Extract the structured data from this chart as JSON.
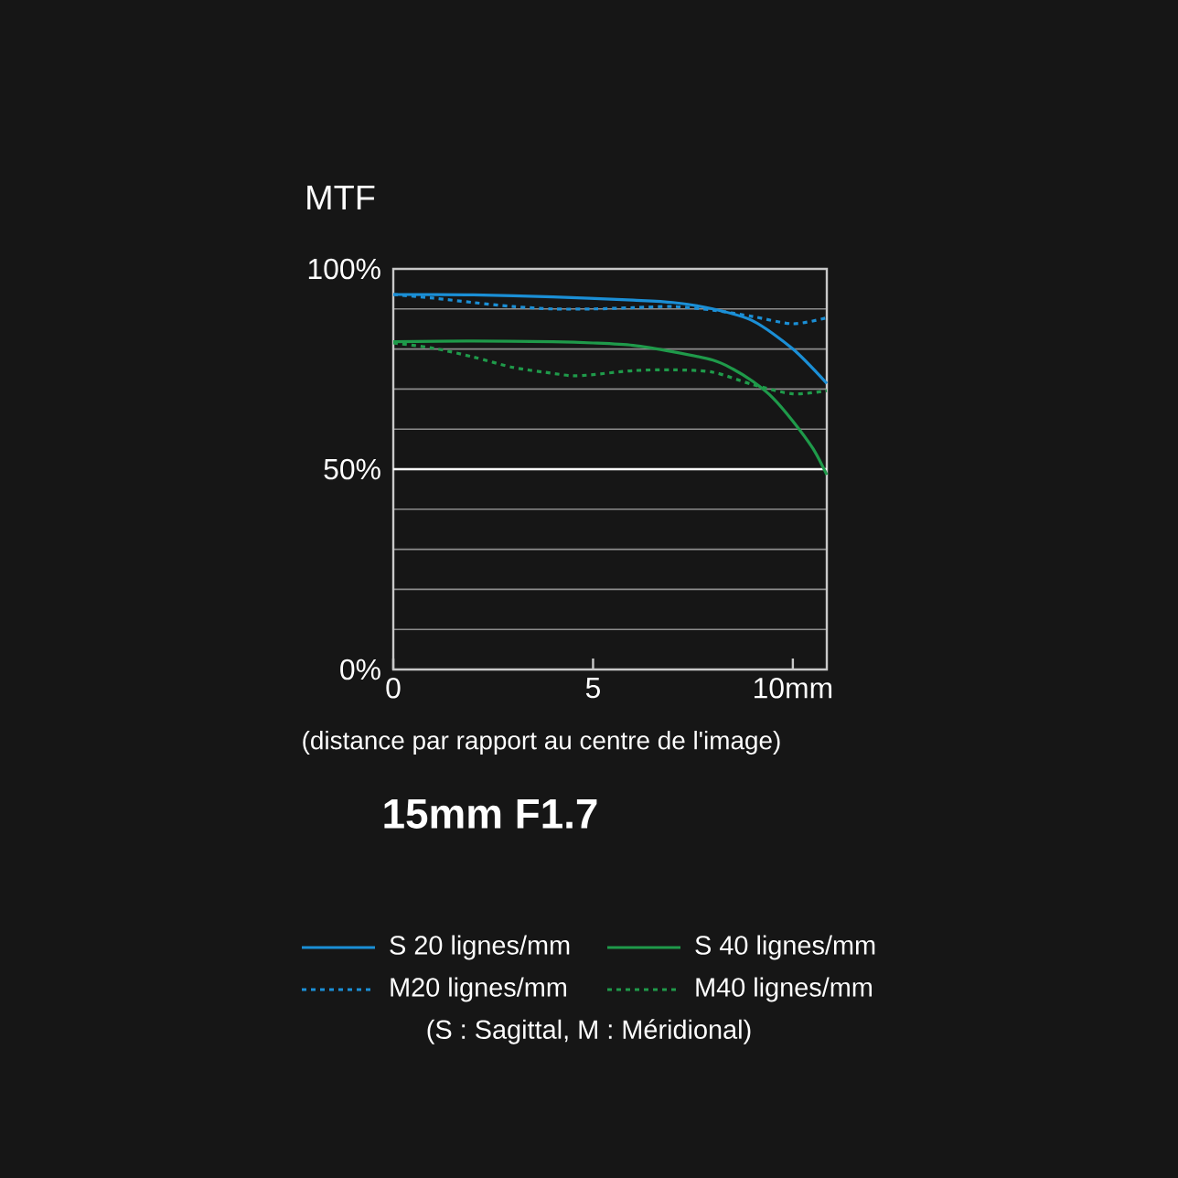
{
  "chart_data": {
    "type": "line",
    "title": "15mm F1.7",
    "ylabel": "MTF",
    "xlabel": "(distance par rapport au centre de l'image)",
    "xlim": [
      0,
      10.85
    ],
    "ylim": [
      0,
      100
    ],
    "xticks": [
      0,
      5,
      {
        "value": 10,
        "label": "10mm"
      }
    ],
    "yticks": [
      {
        "value": 0,
        "label": "0%"
      },
      {
        "value": 10,
        "label": null
      },
      {
        "value": 20,
        "label": null
      },
      {
        "value": 30,
        "label": null
      },
      {
        "value": 40,
        "label": null
      },
      {
        "value": 50,
        "label": "50%"
      },
      {
        "value": 60,
        "label": null
      },
      {
        "value": 70,
        "label": null
      },
      {
        "value": 80,
        "label": null
      },
      {
        "value": 90,
        "label": null
      },
      {
        "value": 100,
        "label": "100%"
      }
    ],
    "grid": "y",
    "legend": "bottom",
    "ref_lines": [
      {
        "axis": "y",
        "value": 50,
        "color": "#ffffff"
      }
    ],
    "annotations": [
      "(S : Sagittal, M : Méridional)"
    ],
    "series": [
      {
        "name": "S 20 lignes/mm",
        "color": "#1b8fd6",
        "line_style": "solid",
        "x": [
          0,
          2,
          4,
          6,
          7,
          8,
          9,
          10,
          10.85
        ],
        "values": [
          93.6,
          93.5,
          93,
          92.2,
          91.6,
          90,
          87,
          80,
          71.4
        ]
      },
      {
        "name": "S 40 lignes/mm",
        "color": "#1f9a4a",
        "line_style": "solid",
        "x": [
          0,
          2,
          4,
          5,
          6,
          7,
          8,
          8.5,
          9,
          9.5,
          10,
          10.5,
          10.85
        ],
        "values": [
          81.8,
          82,
          81.8,
          81.5,
          80.9,
          79.3,
          77.2,
          75,
          71.9,
          67.8,
          62,
          55.2,
          48.6
        ]
      },
      {
        "name": "M20 lignes/mm",
        "color": "#1b8fd6",
        "line_style": "dashed",
        "x": [
          0,
          1,
          2,
          3,
          4,
          5,
          6,
          7,
          8,
          9,
          10,
          10.85
        ],
        "values": [
          93.6,
          92.7,
          91.6,
          90.6,
          90,
          90,
          90.3,
          90.6,
          89.7,
          88.1,
          86.3,
          87.8
        ]
      },
      {
        "name": "M40 lignes/mm",
        "color": "#1f9a4a",
        "line_style": "dashed",
        "x": [
          0,
          1,
          2,
          3,
          4,
          4.5,
          5,
          6,
          7,
          8,
          9,
          10,
          10.85
        ],
        "values": [
          81.5,
          80.2,
          78,
          75.4,
          73.9,
          73.3,
          73.6,
          74.6,
          74.8,
          74.2,
          71.1,
          68.8,
          69.6
        ]
      }
    ]
  }
}
